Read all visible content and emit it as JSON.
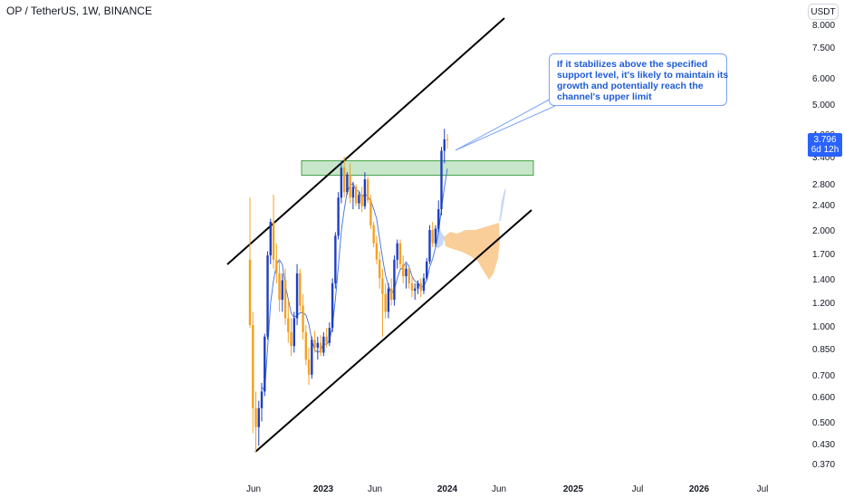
{
  "header": {
    "title": "OP / TetherUS, 1W, BINANCE",
    "currency": "USDT"
  },
  "annotation": {
    "lines": [
      "If it stabilizes above the specified",
      "support level, it's likely to maintain its",
      "growth and potentially reach the",
      "channel's upper limit"
    ]
  },
  "price_tag": {
    "price": "3.796",
    "countdown": "6d 12h"
  },
  "chart_data": {
    "type": "candlestick",
    "title": "OP / TetherUS, 1W, BINANCE",
    "y_scale": "log",
    "y_ticks": [
      "8.000",
      "7.500",
      "6.000",
      "5.000",
      "4.000",
      "3.400",
      "2.800",
      "2.400",
      "2.000",
      "1.700",
      "1.400",
      "1.200",
      "1.000",
      "0.850",
      "0.700",
      "0.600",
      "0.500",
      "0.430",
      "0.370"
    ],
    "x_ticks": [
      {
        "label": "Jun",
        "bold": false
      },
      {
        "label": "2023",
        "bold": true
      },
      {
        "label": "Jun",
        "bold": false
      },
      {
        "label": "2024",
        "bold": true
      },
      {
        "label": "Jun",
        "bold": false
      },
      {
        "label": "2025",
        "bold": true
      },
      {
        "label": "Jul",
        "bold": false
      },
      {
        "label": "2026",
        "bold": true
      },
      {
        "label": "Jul",
        "bold": false
      }
    ],
    "last_price": 3.796,
    "up_color": "#1e3fbf",
    "down_color": "#f5a020",
    "support_zone": [
      3.05,
      3.3
    ],
    "channel_upper": [
      [
        0.86,
        1.62
      ],
      [
        5.7,
        8.2
      ]
    ],
    "channel_lower": [
      [
        0.85,
        0.4
      ],
      [
        5.4,
        2.38
      ]
    ],
    "candles": [
      {
        "o": 1.6,
        "h": 2.5,
        "l": 0.98,
        "c": 1.0
      },
      {
        "o": 1.0,
        "h": 1.1,
        "l": 0.46,
        "c": 0.55
      },
      {
        "o": 0.55,
        "h": 0.62,
        "l": 0.4,
        "c": 0.48
      },
      {
        "o": 0.48,
        "h": 0.58,
        "l": 0.42,
        "c": 0.55
      },
      {
        "o": 0.55,
        "h": 0.66,
        "l": 0.5,
        "c": 0.62
      },
      {
        "o": 0.62,
        "h": 0.94,
        "l": 0.6,
        "c": 0.92
      },
      {
        "o": 0.92,
        "h": 1.7,
        "l": 0.9,
        "c": 1.65
      },
      {
        "o": 1.65,
        "h": 2.15,
        "l": 1.55,
        "c": 2.1
      },
      {
        "o": 2.1,
        "h": 2.55,
        "l": 1.5,
        "c": 1.6
      },
      {
        "o": 1.6,
        "h": 1.8,
        "l": 1.35,
        "c": 1.45
      },
      {
        "o": 1.45,
        "h": 1.6,
        "l": 1.1,
        "c": 1.2
      },
      {
        "o": 1.2,
        "h": 1.45,
        "l": 1.1,
        "c": 1.38
      },
      {
        "o": 1.38,
        "h": 1.5,
        "l": 1.0,
        "c": 1.05
      },
      {
        "o": 1.05,
        "h": 1.2,
        "l": 0.88,
        "c": 0.95
      },
      {
        "o": 0.95,
        "h": 1.05,
        "l": 0.8,
        "c": 0.86
      },
      {
        "o": 0.86,
        "h": 1.1,
        "l": 0.82,
        "c": 1.05
      },
      {
        "o": 1.05,
        "h": 1.55,
        "l": 1.0,
        "c": 1.45
      },
      {
        "o": 1.45,
        "h": 1.5,
        "l": 1.1,
        "c": 1.15
      },
      {
        "o": 1.15,
        "h": 1.25,
        "l": 0.9,
        "c": 0.95
      },
      {
        "o": 0.95,
        "h": 1.0,
        "l": 0.75,
        "c": 0.78
      },
      {
        "o": 0.78,
        "h": 0.85,
        "l": 0.65,
        "c": 0.7
      },
      {
        "o": 0.7,
        "h": 0.92,
        "l": 0.68,
        "c": 0.9
      },
      {
        "o": 0.9,
        "h": 0.96,
        "l": 0.82,
        "c": 0.85
      },
      {
        "o": 0.85,
        "h": 0.92,
        "l": 0.78,
        "c": 0.88
      },
      {
        "o": 0.88,
        "h": 0.93,
        "l": 0.8,
        "c": 0.82
      },
      {
        "o": 0.82,
        "h": 0.95,
        "l": 0.8,
        "c": 0.92
      },
      {
        "o": 0.92,
        "h": 0.98,
        "l": 0.85,
        "c": 0.88
      },
      {
        "o": 0.88,
        "h": 1.02,
        "l": 0.86,
        "c": 0.98
      },
      {
        "o": 0.98,
        "h": 1.4,
        "l": 0.95,
        "c": 1.35
      },
      {
        "o": 1.35,
        "h": 1.95,
        "l": 1.3,
        "c": 1.9
      },
      {
        "o": 1.9,
        "h": 2.6,
        "l": 1.85,
        "c": 2.5
      },
      {
        "o": 2.5,
        "h": 3.25,
        "l": 2.4,
        "c": 3.1
      },
      {
        "o": 3.1,
        "h": 3.35,
        "l": 2.5,
        "c": 2.6
      },
      {
        "o": 2.6,
        "h": 3.0,
        "l": 2.55,
        "c": 2.95
      },
      {
        "o": 2.95,
        "h": 3.2,
        "l": 2.4,
        "c": 2.5
      },
      {
        "o": 2.5,
        "h": 2.8,
        "l": 2.3,
        "c": 2.7
      },
      {
        "o": 2.7,
        "h": 2.75,
        "l": 2.35,
        "c": 2.4
      },
      {
        "o": 2.4,
        "h": 2.6,
        "l": 2.3,
        "c": 2.55
      },
      {
        "o": 2.55,
        "h": 2.7,
        "l": 2.25,
        "c": 2.35
      },
      {
        "o": 2.35,
        "h": 3.0,
        "l": 2.3,
        "c": 2.85
      },
      {
        "o": 2.85,
        "h": 2.9,
        "l": 2.4,
        "c": 2.45
      },
      {
        "o": 2.45,
        "h": 2.55,
        "l": 2.0,
        "c": 2.05
      },
      {
        "o": 2.05,
        "h": 2.1,
        "l": 1.75,
        "c": 1.8
      },
      {
        "o": 1.8,
        "h": 1.9,
        "l": 1.55,
        "c": 1.6
      },
      {
        "o": 1.6,
        "h": 1.7,
        "l": 1.3,
        "c": 1.4
      },
      {
        "o": 1.4,
        "h": 1.5,
        "l": 0.92,
        "c": 1.25
      },
      {
        "o": 1.25,
        "h": 1.35,
        "l": 1.05,
        "c": 1.1
      },
      {
        "o": 1.1,
        "h": 1.35,
        "l": 1.05,
        "c": 1.3
      },
      {
        "o": 1.3,
        "h": 1.4,
        "l": 1.15,
        "c": 1.2
      },
      {
        "o": 1.2,
        "h": 1.65,
        "l": 1.15,
        "c": 1.6
      },
      {
        "o": 1.6,
        "h": 1.85,
        "l": 1.5,
        "c": 1.8
      },
      {
        "o": 1.8,
        "h": 1.85,
        "l": 1.5,
        "c": 1.55
      },
      {
        "o": 1.55,
        "h": 1.65,
        "l": 1.35,
        "c": 1.42
      },
      {
        "o": 1.42,
        "h": 1.55,
        "l": 1.3,
        "c": 1.5
      },
      {
        "o": 1.5,
        "h": 1.52,
        "l": 1.3,
        "c": 1.35
      },
      {
        "o": 1.35,
        "h": 1.42,
        "l": 1.22,
        "c": 1.28
      },
      {
        "o": 1.28,
        "h": 1.35,
        "l": 1.2,
        "c": 1.3
      },
      {
        "o": 1.3,
        "h": 1.38,
        "l": 1.25,
        "c": 1.35
      },
      {
        "o": 1.35,
        "h": 1.4,
        "l": 1.22,
        "c": 1.28
      },
      {
        "o": 1.28,
        "h": 1.45,
        "l": 1.25,
        "c": 1.4
      },
      {
        "o": 1.4,
        "h": 1.62,
        "l": 1.38,
        "c": 1.58
      },
      {
        "o": 1.58,
        "h": 2.05,
        "l": 1.55,
        "c": 1.98
      },
      {
        "o": 1.98,
        "h": 2.1,
        "l": 1.75,
        "c": 1.8
      },
      {
        "o": 1.8,
        "h": 2.05,
        "l": 1.75,
        "c": 2.0
      },
      {
        "o": 2.0,
        "h": 2.45,
        "l": 1.95,
        "c": 2.3
      },
      {
        "o": 2.3,
        "h": 3.6,
        "l": 2.2,
        "c": 3.5
      },
      {
        "o": 3.5,
        "h": 4.1,
        "l": 3.2,
        "c": 3.8
      },
      {
        "o": 3.8,
        "h": 3.95,
        "l": 3.55,
        "c": 3.796
      }
    ]
  }
}
